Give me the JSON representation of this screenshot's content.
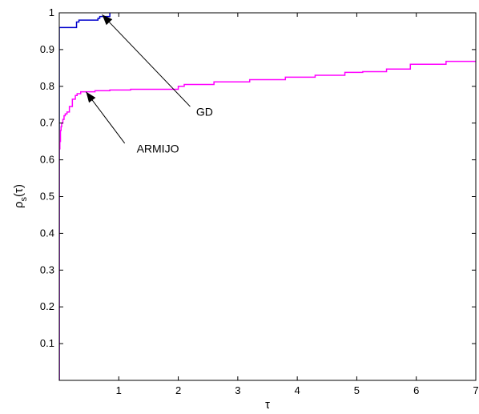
{
  "chart_data": {
    "type": "line",
    "title": "",
    "xlabel": "τ",
    "ylabel": "ρ",
    "ylabel_sub": "s",
    "ylabel_arg": "(τ)",
    "xlim": [
      0,
      7
    ],
    "ylim": [
      0,
      1
    ],
    "grid": false,
    "step": true,
    "x_ticks": [
      1,
      2,
      3,
      4,
      5,
      6,
      7
    ],
    "y_ticks": [
      0.1,
      0.2,
      0.3,
      0.4,
      0.5,
      0.6,
      0.7,
      0.8,
      0.9,
      1
    ],
    "x_tick_labels": [
      "1",
      "2",
      "3",
      "4",
      "5",
      "6",
      "7"
    ],
    "y_tick_labels": [
      "0.1",
      "0.2",
      "0.3",
      "0.4",
      "0.5",
      "0.6",
      "0.7",
      "0.8",
      "0.9",
      "1"
    ],
    "series": [
      {
        "color": "#0000cc",
        "x": [
          0,
          0.29,
          0.33,
          0.65,
          0.68,
          0.85
        ],
        "y": [
          0.96,
          0.975,
          0.98,
          0.985,
          0.99,
          1.0
        ]
      },
      {
        "color": "#ff00ff",
        "x": [
          0,
          0.01,
          0.02,
          0.03,
          0.04,
          0.06,
          0.08,
          0.1,
          0.13,
          0.17,
          0.22,
          0.27,
          0.3,
          0.36,
          0.45,
          0.6,
          0.85,
          1.2,
          2.0,
          2.1,
          2.6,
          3.2,
          3.8,
          4.3,
          4.8,
          5.1,
          5.5,
          5.9,
          6.5,
          7.0
        ],
        "y": [
          0.63,
          0.65,
          0.68,
          0.69,
          0.7,
          0.71,
          0.72,
          0.725,
          0.73,
          0.745,
          0.765,
          0.775,
          0.78,
          0.785,
          0.785,
          0.788,
          0.79,
          0.792,
          0.8,
          0.805,
          0.812,
          0.818,
          0.825,
          0.83,
          0.838,
          0.84,
          0.847,
          0.86,
          0.868,
          0.868
        ]
      }
    ],
    "annotations": [
      {
        "text": "GD",
        "text_at": [
          2.3,
          0.72
        ],
        "arrow_from": [
          2.2,
          0.745
        ],
        "arrow_to": [
          0.72,
          0.995
        ]
      },
      {
        "text": "ARMIJO",
        "text_at": [
          1.3,
          0.62
        ],
        "arrow_from": [
          1.1,
          0.645
        ],
        "arrow_to": [
          0.45,
          0.785
        ]
      }
    ]
  }
}
